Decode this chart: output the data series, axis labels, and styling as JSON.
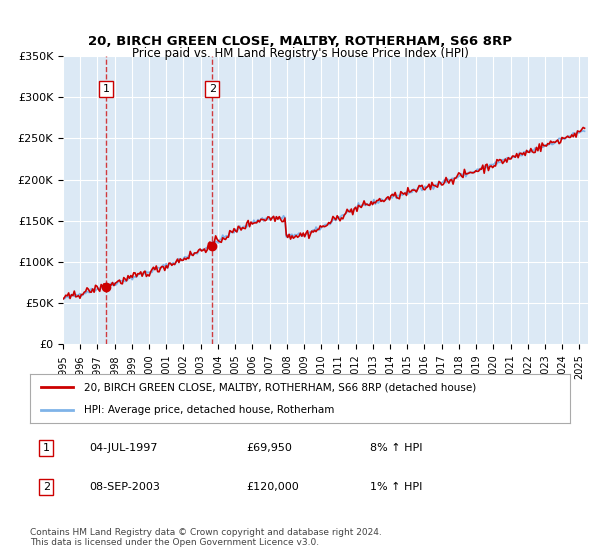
{
  "title": "20, BIRCH GREEN CLOSE, MALTBY, ROTHERHAM, S66 8RP",
  "subtitle": "Price paid vs. HM Land Registry's House Price Index (HPI)",
  "sale1_date": 1997.5,
  "sale1_price": 69950,
  "sale1_label": "1",
  "sale2_date": 2003.67,
  "sale2_price": 120000,
  "sale2_label": "2",
  "ylim_min": 0,
  "ylim_max": 350000,
  "xlim_min": 1995.0,
  "xlim_max": 2025.5,
  "bg_color": "#dce9f5",
  "hpi_line_color": "#7fb3e8",
  "price_line_color": "#cc0000",
  "sale_marker_color": "#cc0000",
  "grid_color": "#ffffff",
  "legend_label_price": "20, BIRCH GREEN CLOSE, MALTBY, ROTHERHAM, S66 8RP (detached house)",
  "legend_label_hpi": "HPI: Average price, detached house, Rotherham",
  "footer": "Contains HM Land Registry data © Crown copyright and database right 2024.\nThis data is licensed under the Open Government Licence v3.0.",
  "ytick_labels": [
    "£0",
    "£50K",
    "£100K",
    "£150K",
    "£200K",
    "£250K",
    "£300K",
    "£350K"
  ],
  "ytick_values": [
    0,
    50000,
    100000,
    150000,
    200000,
    250000,
    300000,
    350000
  ]
}
